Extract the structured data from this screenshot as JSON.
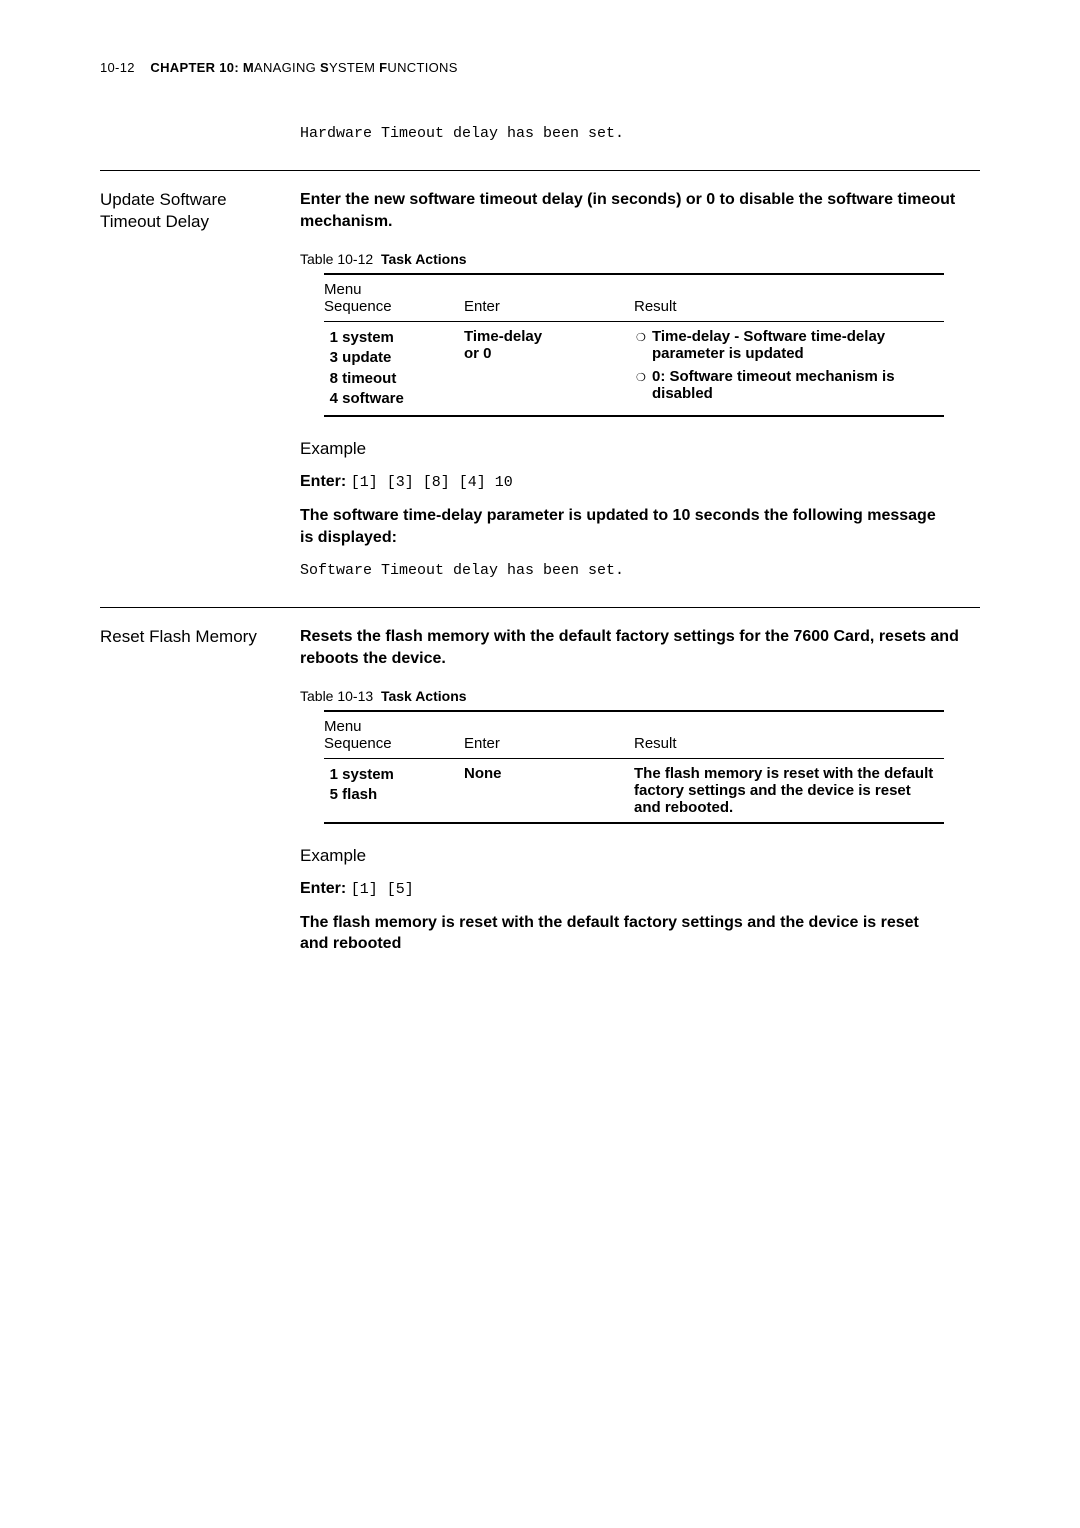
{
  "header": {
    "page_num": "10-12",
    "chapter_label_bold": "CHAPTER 10: M",
    "chapter_label_rest_sc": "ANAGING",
    "chapter_label_bold2": " S",
    "chapter_label_rest_sc2": "YSTEM",
    "chapter_label_bold3": " F",
    "chapter_label_rest_sc3": "UNCTIONS"
  },
  "top_mono": "Hardware Timeout delay has been set.",
  "sec1": {
    "title_l1": "Update Software",
    "title_l2": "Timeout Delay",
    "intro": "Enter the new software timeout delay (in seconds) or 0 to disable the software timeout mechanism.",
    "table_caption_prefix": "Table 10-12",
    "table_caption_title": "Task Actions",
    "col_menu_l1": "Menu",
    "col_menu_l2": "Sequence",
    "col_enter": "Enter",
    "col_result": "Result",
    "menu": [
      {
        "n": "1",
        "t": "system"
      },
      {
        "n": "3",
        "t": "update"
      },
      {
        "n": "8",
        "t": "timeout"
      },
      {
        "n": "4",
        "t": "software"
      }
    ],
    "enter_l1": "Time-delay",
    "enter_l2": "or 0",
    "results": [
      "Time-delay - Software time-delay parameter is updated",
      "0: Software timeout mechanism is disabled"
    ],
    "example_h": "Example",
    "enter_label": "Enter:",
    "enter_code": "[1] [3] [8] [4] 10",
    "after": "The software time-delay parameter is updated to 10 seconds  the following message is displayed:",
    "after_mono": "Software Timeout delay has been set."
  },
  "sec2": {
    "title": "Reset Flash Memory",
    "intro": "Resets the flash memory with the default factory settings for the 7600 Card, resets and reboots the device.",
    "table_caption_prefix": "Table 10-13",
    "table_caption_title": "Task Actions",
    "col_menu_l1": "Menu",
    "col_menu_l2": "Sequence",
    "col_enter": "Enter",
    "col_result": "Result",
    "menu": [
      {
        "n": "1",
        "t": "system"
      },
      {
        "n": "5",
        "t": "flash"
      }
    ],
    "enter": "None",
    "result": "The flash memory is reset with the default factory settings and the device is reset and rebooted.",
    "example_h": "Example",
    "enter_label": "Enter:",
    "enter_code": "[1] [5]",
    "after": "The flash memory is reset with the default factory settings and the device is reset and rebooted"
  },
  "style": {
    "page_bg": "#ffffff",
    "text_color": "#000000",
    "rule_color": "#000000",
    "body_fontsize_pt": 12,
    "mono_fontsize_pt": 11,
    "header_fontsize_pt": 10,
    "bullet_char": "❍"
  }
}
